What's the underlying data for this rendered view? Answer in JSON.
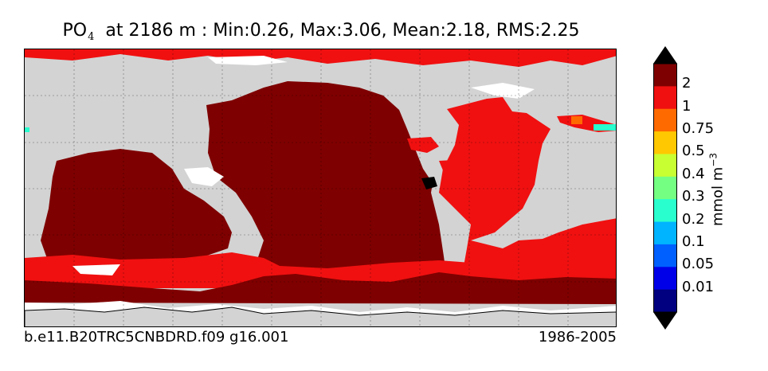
{
  "title": {
    "variable": "PO",
    "variable_sub": "4",
    "rest": "at 2186 m : Min:0.26, Max:3.06, Mean:2.18, RMS:2.25"
  },
  "footer": {
    "case": "b.e11.B20TRC5CNBDRD.f09 g16.001",
    "years": "1986-2005"
  },
  "colorbar": {
    "units": "mmol m",
    "units_exp": "−3",
    "labels": [
      "2",
      "1",
      "0.75",
      "0.5",
      "0.4",
      "0.3",
      "0.2",
      "0.1",
      "0.05",
      "0.01"
    ],
    "colors_top_to_bottom": [
      "#7f0000",
      "#f01010",
      "#ff6a00",
      "#ffc800",
      "#c8ff32",
      "#74ff82",
      "#29ffce",
      "#00b4ff",
      "#0060ff",
      "#0000e8",
      "#000080"
    ],
    "over_color": "#000000",
    "under_color": "#000000"
  },
  "map_colors": {
    "land": "#d3d3d3",
    "no_data": "#ffffff",
    "high": "#7f0000",
    "mid": "#f01010",
    "orange": "#ff6a00",
    "cyan": "#29ffce"
  }
}
